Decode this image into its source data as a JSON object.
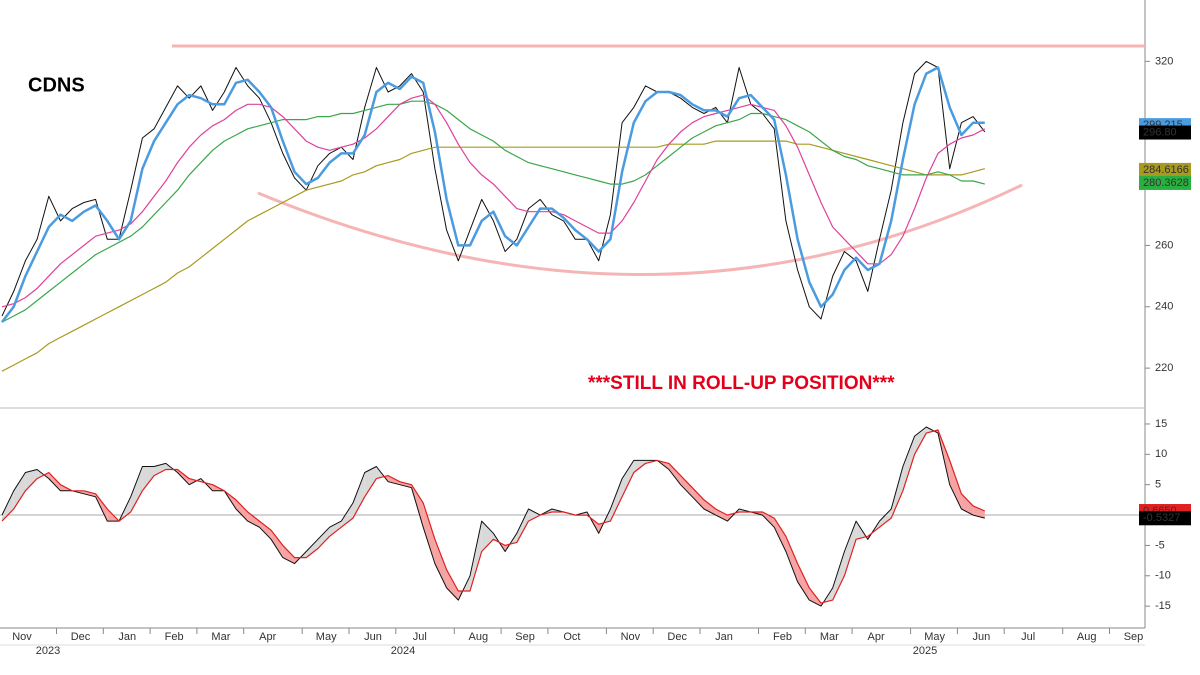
{
  "chart_data": [
    {
      "type": "line",
      "title": "CDNS",
      "annotation": "***STILL IN ROLL-UP POSITION***",
      "ylim": [
        207,
        340
      ],
      "yticks": [
        220,
        240,
        260,
        320
      ],
      "hline": 325,
      "hline_color": "#f5b5b5",
      "series": [
        {
          "color": "#111111",
          "width": 1,
          "values": [
            237,
            245,
            255,
            262,
            276,
            268,
            272,
            274,
            275,
            262,
            262,
            278,
            295,
            298,
            305,
            312,
            308,
            312,
            304,
            310,
            318,
            312,
            308,
            300,
            290,
            282,
            278,
            286,
            290,
            292,
            288,
            305,
            318,
            310,
            312,
            316,
            310,
            285,
            265,
            255,
            265,
            275,
            268,
            258,
            262,
            272,
            275,
            270,
            268,
            262,
            262,
            255,
            270,
            300,
            305,
            312,
            310,
            310,
            308,
            305,
            303,
            305,
            300,
            318,
            306,
            303,
            298,
            268,
            252,
            240,
            236,
            250,
            258,
            255,
            245,
            262,
            278,
            300,
            316,
            320,
            318,
            285,
            300,
            302,
            297,
            null,
            null,
            null,
            null,
            null,
            null,
            null,
            null,
            null,
            null,
            null,
            null,
            null
          ]
        },
        {
          "color": "#a89a1e",
          "width": 1.2,
          "values": [
            219,
            221,
            223,
            225,
            228,
            230,
            232,
            234,
            236,
            238,
            240,
            242,
            244,
            246,
            248,
            251,
            253,
            256,
            259,
            262,
            265,
            268,
            270,
            272,
            274,
            276,
            278,
            279,
            280,
            281,
            283,
            284,
            286,
            287,
            288,
            290,
            291,
            292,
            292,
            292,
            292,
            292,
            292,
            292,
            292,
            292,
            292,
            292,
            292,
            292,
            292,
            292,
            292,
            292,
            292,
            292,
            292,
            293,
            293,
            293,
            293,
            294,
            294,
            294,
            294,
            294,
            294,
            294,
            293,
            293,
            292,
            291,
            290,
            289,
            288,
            287,
            286,
            285,
            284,
            283,
            283,
            283,
            283,
            284,
            285,
            null,
            null,
            null,
            null,
            null,
            null,
            null,
            null,
            null,
            null,
            null,
            null,
            null
          ]
        },
        {
          "color": "#3aa64a",
          "width": 1.2,
          "values": [
            235,
            237,
            239,
            242,
            245,
            248,
            251,
            254,
            257,
            259,
            261,
            263,
            266,
            270,
            274,
            278,
            283,
            287,
            291,
            294,
            296,
            298,
            299,
            300,
            301,
            301,
            301,
            302,
            302,
            303,
            303,
            304,
            305,
            306,
            306,
            307,
            307,
            306,
            304,
            301,
            298,
            296,
            294,
            291,
            289,
            287,
            286,
            285,
            284,
            283,
            282,
            281,
            280,
            280,
            281,
            283,
            286,
            289,
            292,
            295,
            297,
            299,
            300,
            301,
            303,
            303,
            302,
            301,
            299,
            297,
            294,
            291,
            289,
            288,
            286,
            285,
            284,
            283,
            283,
            283,
            284,
            283,
            281,
            281,
            280,
            null,
            null,
            null,
            null,
            null,
            null,
            null,
            null,
            null,
            null,
            null,
            null,
            null
          ]
        },
        {
          "color": "#e0409a",
          "width": 1.2,
          "values": [
            240,
            241,
            243,
            246,
            250,
            254,
            257,
            260,
            263,
            264,
            265,
            267,
            271,
            276,
            281,
            287,
            292,
            296,
            299,
            301,
            304,
            306,
            306,
            305,
            302,
            298,
            294,
            292,
            291,
            292,
            293,
            295,
            298,
            302,
            306,
            308,
            309,
            306,
            300,
            293,
            287,
            283,
            280,
            276,
            272,
            271,
            271,
            271,
            270,
            268,
            266,
            264,
            264,
            268,
            274,
            281,
            288,
            293,
            297,
            300,
            302,
            303,
            304,
            305,
            306,
            305,
            304,
            299,
            292,
            283,
            274,
            266,
            262,
            258,
            254,
            254,
            257,
            263,
            272,
            282,
            290,
            293,
            295,
            296,
            298,
            null,
            null,
            null,
            null,
            null,
            null,
            null,
            null,
            null,
            null,
            null,
            null,
            null
          ]
        },
        {
          "color": "#4a9be0",
          "width": 2.5,
          "values": [
            235,
            240,
            250,
            258,
            266,
            270,
            268,
            271,
            273,
            268,
            262,
            268,
            285,
            294,
            300,
            306,
            309,
            308,
            306,
            306,
            313,
            314,
            310,
            305,
            294,
            284,
            280,
            282,
            287,
            290,
            290,
            296,
            310,
            313,
            311,
            315,
            313,
            297,
            275,
            260,
            260,
            268,
            271,
            263,
            260,
            266,
            272,
            272,
            269,
            265,
            262,
            258,
            262,
            284,
            300,
            307,
            310,
            310,
            309,
            306,
            304,
            304,
            302,
            308,
            309,
            305,
            301,
            283,
            262,
            248,
            240,
            244,
            252,
            256,
            252,
            254,
            268,
            288,
            306,
            316,
            318,
            305,
            296,
            300,
            300,
            null,
            null,
            null,
            null,
            null,
            null,
            null,
            null,
            null,
            null,
            null,
            null,
            null
          ]
        }
      ],
      "last_labels": [
        {
          "value": 299.215,
          "label": "299.215",
          "color": "#4a9be0"
        },
        {
          "value": 296.8,
          "label": "296.80",
          "color": "#000000"
        },
        {
          "value": 284.6166,
          "label": "284.6166",
          "color": "#a89a1e"
        },
        {
          "value": 280.3628,
          "label": "280.3628",
          "color": "#2ab040"
        }
      ]
    },
    {
      "type": "line",
      "ylim": [
        -18.6,
        17.3
      ],
      "yticks": [
        -15,
        -10,
        -5,
        5,
        10,
        15
      ],
      "categories": [
        "Nov",
        null,
        null,
        null,
        null,
        "Dec",
        null,
        null,
        null,
        "Jan",
        null,
        null,
        null,
        "Feb",
        null,
        null,
        null,
        "Mar",
        null,
        null,
        null,
        "Apr",
        null,
        null,
        null,
        null,
        "May",
        null,
        null,
        null,
        "Jun",
        null,
        null,
        null,
        "Jul",
        null,
        null,
        null,
        null,
        "Aug",
        null,
        null,
        null,
        "Sep",
        null,
        null,
        null,
        "Oct",
        null,
        null,
        null,
        null,
        "Nov",
        null,
        null,
        null,
        "Dec",
        null,
        null,
        null,
        "Jan",
        null,
        null,
        null,
        null,
        "Feb",
        null,
        null,
        null,
        "Mar",
        null,
        null,
        null,
        "Apr",
        null,
        null,
        null,
        null,
        "May",
        null,
        null,
        null,
        "Jun",
        null,
        null,
        null,
        "Jul",
        null,
        null,
        null,
        null,
        "Aug",
        null,
        null,
        null,
        "Sep",
        null,
        null
      ],
      "years": [
        "2023",
        "2024",
        "2025"
      ],
      "fill_up": "#d9d9d9",
      "fill_down": "#f5a3a3",
      "series": [
        {
          "color": "#111111",
          "width": 1,
          "values": [
            0,
            4,
            7,
            7.5,
            6,
            4,
            4,
            3.5,
            3,
            -1,
            -1,
            3,
            8,
            8,
            8.5,
            7,
            5,
            6,
            4,
            4,
            1,
            -1,
            -2,
            -4,
            -7,
            -8,
            -6,
            -4,
            -2,
            -1,
            2,
            7,
            8,
            5.5,
            5,
            4.5,
            -2,
            -8,
            -12,
            -14,
            -10,
            -1,
            -3,
            -6,
            -3,
            1,
            0,
            1,
            0.5,
            0,
            0.5,
            -3,
            1,
            6,
            9,
            9,
            9,
            7.5,
            5,
            3,
            1,
            0,
            -1,
            1,
            0.5,
            0,
            -2,
            -6,
            -11,
            -14,
            -15,
            -12,
            -6,
            -1,
            -4,
            -1,
            1,
            8,
            13,
            14.5,
            13.5,
            5,
            1,
            0,
            -0.5,
            null,
            null,
            null,
            null,
            null,
            null,
            null,
            null,
            null,
            null,
            null,
            null,
            null
          ]
        },
        {
          "color": "#e02020",
          "width": 1.2,
          "values": [
            -1,
            1,
            4,
            6,
            7,
            5,
            4,
            4,
            3.5,
            1,
            -1,
            0.5,
            4,
            6.5,
            7.5,
            7.5,
            6,
            5.5,
            5,
            4,
            2.5,
            0.5,
            -1,
            -2.5,
            -5,
            -7,
            -7,
            -5.5,
            -3.5,
            -2,
            -0.5,
            3,
            6,
            6.5,
            5.5,
            5,
            2,
            -4,
            -9,
            -12.5,
            -12.5,
            -6,
            -4,
            -5,
            -4.5,
            -1,
            0,
            0.5,
            0.5,
            0,
            0,
            -1.5,
            -1,
            3,
            7,
            8.5,
            9,
            8.5,
            6.5,
            4.5,
            2.5,
            1,
            0,
            0.5,
            0.5,
            0.5,
            -0.5,
            -3.5,
            -8,
            -12,
            -14.5,
            -14,
            -10,
            -4,
            -3.5,
            -2,
            -0.5,
            4,
            10,
            13.5,
            14,
            9,
            3.5,
            1.5,
            0.66,
            null,
            null,
            null,
            null,
            null,
            null,
            null,
            null,
            null,
            null,
            null,
            null,
            null
          ]
        }
      ],
      "last_labels": [
        {
          "value": 0.665,
          "label": "0.6650",
          "color": "#e02020"
        },
        {
          "value": -0.5327,
          "label": "-0.5327",
          "color": "#000000"
        }
      ]
    }
  ]
}
